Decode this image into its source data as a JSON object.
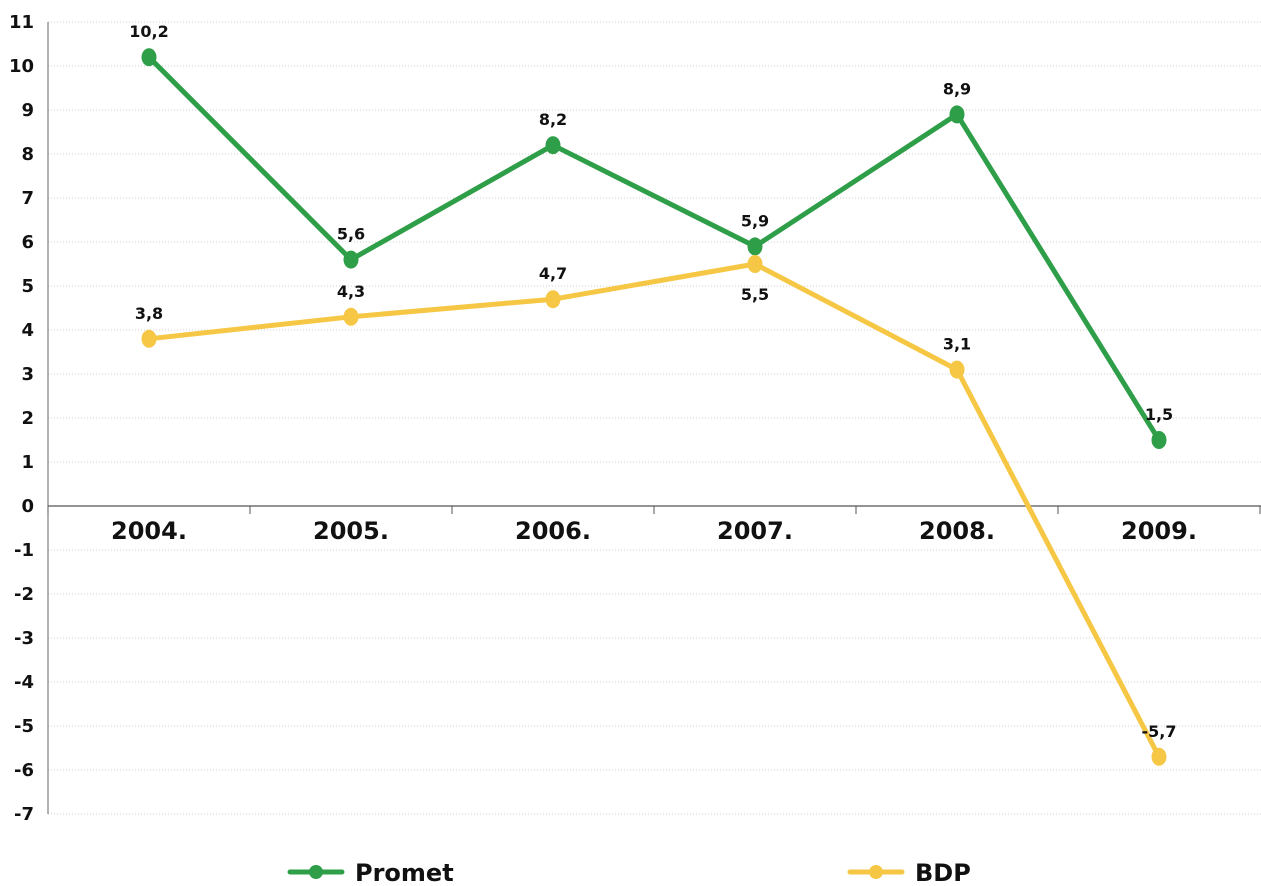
{
  "chart_data": {
    "type": "line",
    "categories": [
      "2004.",
      "2005.",
      "2006.",
      "2007.",
      "2008.",
      "2009."
    ],
    "series": [
      {
        "name": "Promet",
        "color": "#2e9e48",
        "values": [
          10.2,
          5.6,
          8.2,
          5.9,
          8.9,
          1.5
        ],
        "labels": [
          "10,2",
          "5,6",
          "8,2",
          "5,9",
          "8,9",
          "1,5"
        ]
      },
      {
        "name": "BDP",
        "color": "#f6c744",
        "values": [
          3.8,
          4.3,
          4.7,
          5.5,
          3.1,
          -5.7
        ],
        "labels": [
          "3,8",
          "4,3",
          "4,7",
          "5,5",
          "3,1",
          "-5,7"
        ]
      }
    ],
    "ylim": [
      -7,
      11
    ],
    "yticks": [
      "11",
      "10",
      "9",
      "8",
      "7",
      "6",
      "5",
      "4",
      "3",
      "2",
      "1",
      "0",
      "-1",
      "-2",
      "-3",
      "-4",
      "-5",
      "-6",
      "-7"
    ],
    "ytick_values": [
      11,
      10,
      9,
      8,
      7,
      6,
      5,
      4,
      3,
      2,
      1,
      0,
      -1,
      -2,
      -3,
      -4,
      -5,
      -6,
      -7
    ],
    "grid": true,
    "legend_placement": "bottom"
  }
}
